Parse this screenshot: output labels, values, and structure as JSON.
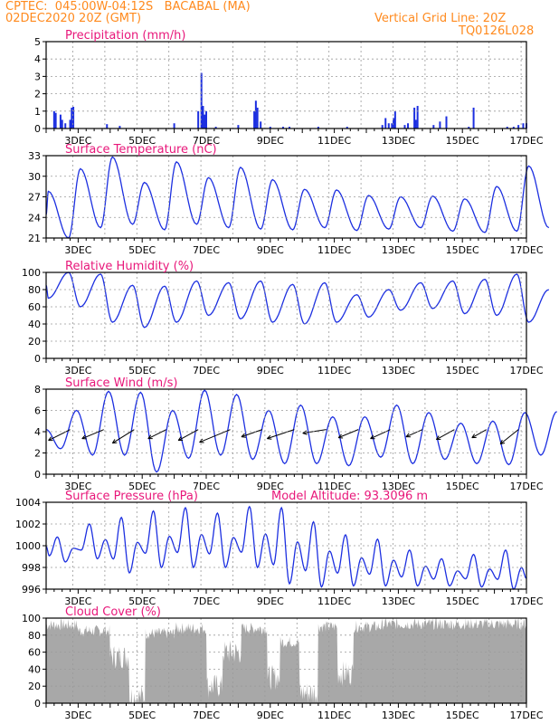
{
  "header": {
    "line1": "CPTEC:  045:00W-04:12S   BACABAL (MA)",
    "line2": "02DEC2020 20Z (GMT)",
    "grid_line": "Vertical Grid Line: 20Z",
    "code": "TQ0126L028"
  },
  "colors": {
    "header": "#ff8a1e",
    "title": "#e8177a",
    "line": "#1c2fe0",
    "cloud": "#a8a8a8",
    "grid": "#9a9a9a"
  },
  "x_axis": {
    "tick_labels": [
      "3DEC",
      "5DEC",
      "7DEC",
      "9DEC",
      "11DEC",
      "13DEC",
      "15DEC",
      "17DEC"
    ],
    "tick_days": [
      3,
      5,
      7,
      9,
      11,
      13,
      15,
      17
    ],
    "range_days": [
      2.0,
      17.0
    ]
  },
  "chart_data": [
    {
      "type": "bar",
      "title": "Precipitation (mm/h)",
      "ylim": [
        0,
        5
      ],
      "yticks": [
        0,
        1,
        2,
        3,
        4,
        5
      ],
      "x_days": [
        2.25,
        2.3,
        2.45,
        2.5,
        2.6,
        2.75,
        2.8,
        2.85,
        3.9,
        4.3,
        6.0,
        6.75,
        6.85,
        6.9,
        6.95,
        7.0,
        7.3,
        8.0,
        8.5,
        8.55,
        8.6,
        8.7,
        9.0,
        9.4,
        9.6,
        10.5,
        11.4,
        12.5,
        12.6,
        12.7,
        12.8,
        12.85,
        12.9,
        13.2,
        13.3,
        13.5,
        13.55,
        13.6,
        14.1,
        14.3,
        14.5,
        15.2,
        15.35,
        16.4,
        16.6,
        16.75,
        16.9,
        17.0
      ],
      "values": [
        1.0,
        0.9,
        0.8,
        0.5,
        0.3,
        0.5,
        1.2,
        1.25,
        0.25,
        0.15,
        0.3,
        1.0,
        3.2,
        1.3,
        0.8,
        1.0,
        0.1,
        0.2,
        1.0,
        1.6,
        1.2,
        0.4,
        0.1,
        0.1,
        0.1,
        0.1,
        0.1,
        0.2,
        0.6,
        0.3,
        0.3,
        0.6,
        1.0,
        0.2,
        0.3,
        1.2,
        0.5,
        1.3,
        0.2,
        0.4,
        0.7,
        0.1,
        1.2,
        0.1,
        0.1,
        0.2,
        0.3,
        0.3
      ]
    },
    {
      "type": "line",
      "title": "Surface Temperature (nC)",
      "ylim": [
        21,
        33
      ],
      "yticks": [
        21,
        24,
        27,
        30,
        33
      ],
      "min_phase": 0.7,
      "max_phase": 0.07,
      "maxima": [
        27.8,
        31.1,
        32.8,
        29.1,
        32.1,
        29.8,
        31.3,
        29.5,
        28.1,
        28.0,
        27.2,
        27.0,
        27.1,
        26.7,
        28.5,
        31.5
      ],
      "minima": [
        21.0,
        22.5,
        23.0,
        22.2,
        23.0,
        22.5,
        22.3,
        22.2,
        22.5,
        22.1,
        22.3,
        22.5,
        22.0,
        21.8,
        22.0,
        22.5
      ]
    },
    {
      "type": "line",
      "title": "Relative Humidity (%)",
      "ylim": [
        0,
        100
      ],
      "yticks": [
        0,
        20,
        40,
        60,
        80,
        100
      ],
      "min_phase": 0.07,
      "max_phase": 0.7,
      "maxima": [
        100,
        98,
        85,
        84,
        90,
        88,
        90,
        86,
        88,
        74,
        80,
        88,
        90,
        92,
        98,
        80
      ],
      "minima": [
        70,
        60,
        42,
        36,
        42,
        50,
        46,
        42,
        40,
        42,
        48,
        56,
        58,
        52,
        50,
        42
      ]
    },
    {
      "type": "line",
      "title": "Surface Wind (m/s)",
      "ylim": [
        0,
        8
      ],
      "yticks": [
        0,
        2,
        4,
        6,
        8
      ],
      "min_phase": 0.45,
      "max_phase": 0.95,
      "maxima": [
        6.0,
        7.8,
        7.7,
        6.0,
        7.9,
        7.5,
        6.0,
        6.5,
        5.4,
        5.4,
        6.5,
        5.8,
        4.8,
        5.0,
        5.8,
        5.9
      ],
      "minima": [
        2.4,
        1.8,
        1.8,
        0.2,
        1.5,
        1.8,
        1.4,
        1.0,
        1.0,
        0.8,
        1.6,
        1.0,
        1.4,
        1.0,
        0.9,
        1.8
      ],
      "arrows": [
        {
          "day": 2.75,
          "u": 2.4,
          "v": -0.6
        },
        {
          "day": 3.8,
          "u": 2.4,
          "v": -0.4
        },
        {
          "day": 4.75,
          "u": 2.4,
          "v": -0.9
        },
        {
          "day": 5.75,
          "u": 2.0,
          "v": -0.4
        },
        {
          "day": 6.75,
          "u": 2.2,
          "v": -0.6
        },
        {
          "day": 7.75,
          "u": 3.4,
          "v": -0.8
        },
        {
          "day": 8.75,
          "u": 2.3,
          "v": -0.2
        },
        {
          "day": 9.75,
          "u": 3.0,
          "v": -0.4
        },
        {
          "day": 10.75,
          "u": 2.6,
          "v": 0.2
        },
        {
          "day": 11.75,
          "u": 2.2,
          "v": -0.3
        },
        {
          "day": 12.75,
          "u": 2.2,
          "v": -0.4
        },
        {
          "day": 13.75,
          "u": 1.8,
          "v": -0.2
        },
        {
          "day": 14.75,
          "u": 2.0,
          "v": -0.5
        },
        {
          "day": 15.75,
          "u": 1.6,
          "v": -0.3
        },
        {
          "day": 16.75,
          "u": 2.0,
          "v": -1.0
        }
      ]
    },
    {
      "type": "line",
      "title": "Surface Pressure (hPa)",
      "annotation": "Model Altitude: 93.3096 m",
      "ylim": [
        996,
        1004
      ],
      "yticks": [
        996,
        998,
        1000,
        1002,
        1004
      ],
      "semidiurnal": true,
      "main_max": [
        1000.8,
        1002.0,
        1002.6,
        1003.2,
        1003.5,
        1003.0,
        1003.6,
        1003.5,
        1002.2,
        1001.0,
        1000.6,
        999.6,
        998.8,
        999.2,
        999.6
      ],
      "main_min": [
        998.5,
        998.8,
        997.5,
        998.0,
        998.0,
        998.0,
        998.0,
        996.5,
        996.2,
        996.3,
        996.3,
        996.3,
        996.3,
        996.2,
        996.0
      ]
    },
    {
      "type": "area",
      "title": "Cloud Cover (%)",
      "ylim": [
        0,
        100
      ],
      "yticks": [
        0,
        20,
        40,
        60,
        80,
        100
      ],
      "segments": [
        {
          "from": 2.0,
          "to": 3.0,
          "mean": 92
        },
        {
          "from": 3.0,
          "to": 4.0,
          "mean": 85
        },
        {
          "from": 4.0,
          "to": 4.6,
          "mean": 55
        },
        {
          "from": 4.6,
          "to": 5.1,
          "mean": 8
        },
        {
          "from": 5.1,
          "to": 6.0,
          "mean": 82
        },
        {
          "from": 6.0,
          "to": 7.0,
          "mean": 88
        },
        {
          "from": 7.0,
          "to": 7.5,
          "mean": 20
        },
        {
          "from": 7.5,
          "to": 8.1,
          "mean": 60
        },
        {
          "from": 8.1,
          "to": 8.9,
          "mean": 88
        },
        {
          "from": 8.9,
          "to": 9.3,
          "mean": 30
        },
        {
          "from": 9.3,
          "to": 9.9,
          "mean": 72
        },
        {
          "from": 9.9,
          "to": 10.5,
          "mean": 12
        },
        {
          "from": 10.5,
          "to": 11.1,
          "mean": 90
        },
        {
          "from": 11.1,
          "to": 11.6,
          "mean": 35
        },
        {
          "from": 11.6,
          "to": 12.5,
          "mean": 90
        },
        {
          "from": 12.5,
          "to": 17.0,
          "mean": 93
        }
      ]
    }
  ]
}
